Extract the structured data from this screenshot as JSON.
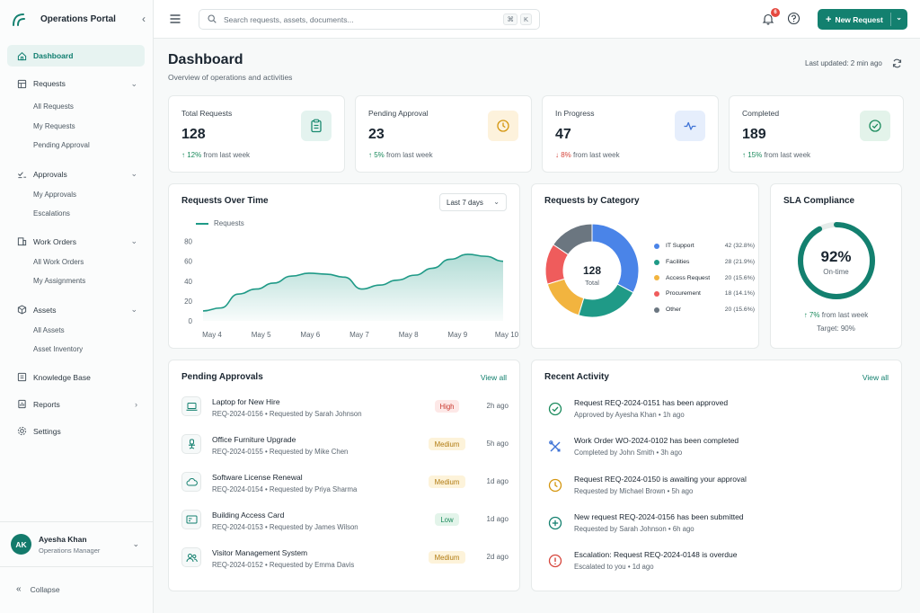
{
  "app": {
    "name": "Operations Portal"
  },
  "sidebar": {
    "items": [
      {
        "label": "Dashboard"
      },
      {
        "label": "Requests",
        "children": [
          "All Requests",
          "My Requests",
          "Pending Approval"
        ]
      },
      {
        "label": "Approvals",
        "children": [
          "My Approvals",
          "Escalations"
        ]
      },
      {
        "label": "Work Orders",
        "children": [
          "All Work Orders",
          "My Assignments"
        ]
      },
      {
        "label": "Assets",
        "children": [
          "All Assets",
          "Asset Inventory"
        ]
      },
      {
        "label": "Knowledge Base"
      },
      {
        "label": "Reports"
      },
      {
        "label": "Settings"
      }
    ],
    "user": {
      "initials": "AK",
      "name": "Ayesha Khan",
      "role": "Operations Manager"
    },
    "collapse_label": "Collapse"
  },
  "topbar": {
    "search_placeholder": "Search requests, assets, documents...",
    "shortcut": [
      "⌘",
      "K"
    ],
    "notification_count": "6",
    "new_request_label": "New Request"
  },
  "page": {
    "title": "Dashboard",
    "subtitle": "Overview of operations and activities",
    "last_updated": "Last updated: 2 min ago"
  },
  "stats": [
    {
      "label": "Total Requests",
      "value": "128",
      "delta": "12%",
      "delta_text": "from last week",
      "direction": "up",
      "icon": "clipboard-icon",
      "color": "#1a8a70"
    },
    {
      "label": "Pending Approval",
      "value": "23",
      "delta": "5%",
      "delta_text": "from last week",
      "direction": "up",
      "icon": "clock-icon",
      "color": "#d4960f"
    },
    {
      "label": "In Progress",
      "value": "47",
      "delta": "8%",
      "delta_text": "from last week",
      "direction": "down",
      "icon": "activity-icon",
      "color": "#3f73d6"
    },
    {
      "label": "Completed",
      "value": "189",
      "delta": "15%",
      "delta_text": "from last week",
      "direction": "up",
      "icon": "check-circle-icon",
      "color": "#1a8a5c"
    }
  ],
  "requests_over_time": {
    "title": "Requests Over Time",
    "range": "Last 7 days",
    "chart_data": {
      "type": "area",
      "series": [
        {
          "name": "Requests",
          "values": [
            10,
            13,
            27,
            32,
            38,
            45,
            48,
            47,
            44,
            32,
            36,
            41,
            46,
            53,
            62,
            67,
            65,
            60
          ]
        }
      ],
      "x_tick_labels": [
        "May 4",
        "May 5",
        "May 6",
        "May 7",
        "May 8",
        "May 9",
        "May 10"
      ],
      "y_ticks": [
        0,
        20,
        40,
        60,
        80
      ],
      "ylim": [
        0,
        85
      ],
      "color": "#1f9a87"
    }
  },
  "requests_by_category": {
    "title": "Requests by Category",
    "total": "128",
    "total_label": "Total",
    "chart_data": {
      "type": "pie",
      "categories": [
        "IT Support",
        "Facilities",
        "Access Request",
        "Procurement",
        "Other"
      ],
      "values": [
        42,
        28,
        20,
        18,
        20
      ],
      "labels": [
        "42 (32.8%)",
        "28 (21.9%)",
        "20 (15.6%)",
        "18 (14.1%)",
        "20 (15.6%)"
      ],
      "colors": [
        "#4a84e8",
        "#1f9a87",
        "#f2b43f",
        "#ef5c5c",
        "#6b7680"
      ]
    }
  },
  "sla": {
    "title": "SLA Compliance",
    "value": "92%",
    "value_fraction": 0.92,
    "label": "On-time",
    "delta": "7%",
    "delta_text": "from last week",
    "target": "Target: 90%"
  },
  "pending_approvals": {
    "title": "Pending Approvals",
    "view_all": "View all",
    "rows": [
      {
        "title": "Laptop for New Hire",
        "id": "REQ-2024-0156",
        "by": "Requested by Sarah Johnson",
        "priority": "High",
        "time": "2h ago",
        "icon": "laptop-icon"
      },
      {
        "title": "Office Furniture Upgrade",
        "id": "REQ-2024-0155",
        "by": "Requested by Mike Chen",
        "priority": "Medium",
        "time": "5h ago",
        "icon": "chair-icon"
      },
      {
        "title": "Software License Renewal",
        "id": "REQ-2024-0154",
        "by": "Requested by Priya Sharma",
        "priority": "Medium",
        "time": "1d ago",
        "icon": "cloud-icon"
      },
      {
        "title": "Building Access Card",
        "id": "REQ-2024-0153",
        "by": "Requested by James Wilson",
        "priority": "Low",
        "time": "1d ago",
        "icon": "card-icon"
      },
      {
        "title": "Visitor Management System",
        "id": "REQ-2024-0152",
        "by": "Requested by Emma Davis",
        "priority": "Medium",
        "time": "2d ago",
        "icon": "users-icon"
      }
    ]
  },
  "recent_activity": {
    "title": "Recent Activity",
    "view_all": "View all",
    "rows": [
      {
        "title": "Request REQ-2024-0151 has been approved",
        "who": "Approved by Ayesha Khan",
        "time": "1h ago",
        "icon": "check-circle-icon",
        "color": "#1a8a5c"
      },
      {
        "title": "Work Order WO-2024-0102 has been completed",
        "who": "Completed by John Smith",
        "time": "3h ago",
        "icon": "tools-icon",
        "color": "#3f73d6"
      },
      {
        "title": "Request REQ-2024-0150 is awaiting your approval",
        "who": "Requested by Michael Brown",
        "time": "5h ago",
        "icon": "clock-icon",
        "color": "#d4960f"
      },
      {
        "title": "New request REQ-2024-0156 has been submitted",
        "who": "Requested by Sarah Johnson",
        "time": "6h ago",
        "icon": "plus-circle-icon",
        "color": "#13806f"
      },
      {
        "title": "Escalation: Request REQ-2024-0148 is overdue",
        "who": "Escalated to you",
        "time": "1d ago",
        "icon": "alert-circle-icon",
        "color": "#d6453b"
      }
    ]
  }
}
